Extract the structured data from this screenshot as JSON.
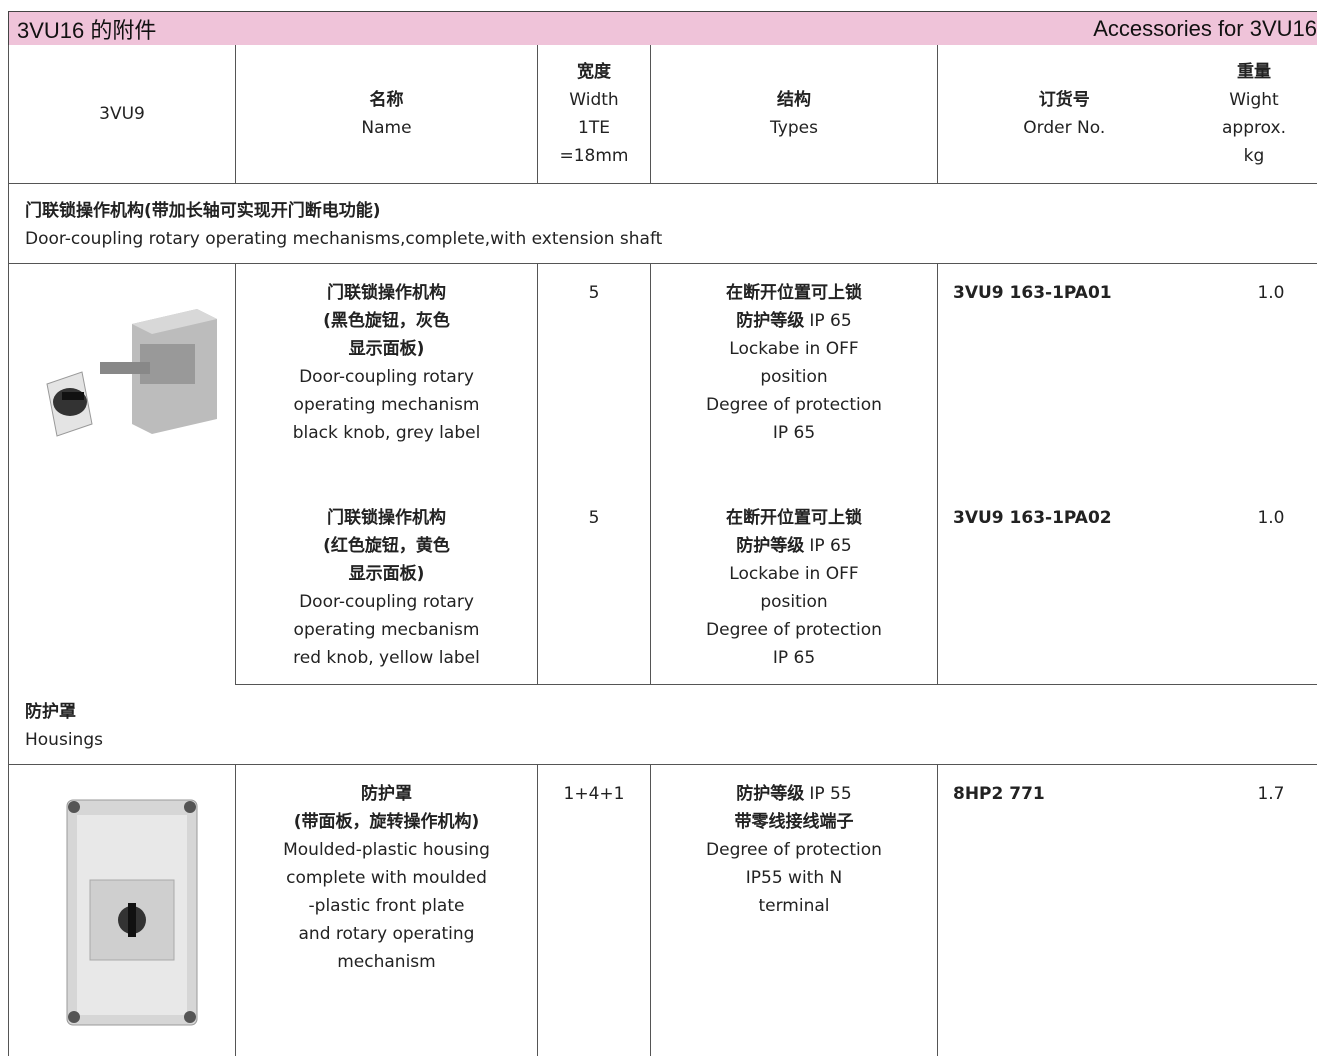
{
  "header": {
    "title_cn": "3VU16 的附件",
    "title_en": "Accessories for 3VU16"
  },
  "columns": [
    {
      "lines": [
        {
          "regular": "3VU9"
        }
      ]
    },
    {
      "lines": [
        {
          "bold": "名称"
        },
        {
          "regular": "Name"
        }
      ]
    },
    {
      "lines": [
        {
          "bold": "宽度"
        },
        {
          "regular": "Width"
        },
        {
          "regular": "1TE"
        },
        {
          "regular": "=18mm"
        }
      ]
    },
    {
      "lines": [
        {
          "bold": "结构"
        },
        {
          "regular": "Types"
        }
      ]
    },
    {
      "lines": [
        {
          "bold": "订货号"
        },
        {
          "regular": "Order No."
        }
      ]
    },
    {
      "lines": [
        {
          "bold": "重量"
        },
        {
          "regular": "Wight"
        },
        {
          "regular": "approx."
        },
        {
          "regular": "kg"
        }
      ]
    }
  ],
  "sections": [
    {
      "title_cn": "门联锁操作机构(带加长轴可实现开门断电功能)",
      "title_en": "Door-coupling rotary operating mechanisms,complete,with extension shaft",
      "items": [
        {
          "name": [
            {
              "bold": "门联锁操作机构"
            },
            {
              "bold": "(黑色旋钮，灰色"
            },
            {
              "bold": "显示面板)"
            },
            {
              "regular": "Door-coupling rotary"
            },
            {
              "regular": "operating mechanism"
            },
            {
              "regular": "black knob, grey label"
            }
          ],
          "width": "5",
          "types": [
            {
              "bold": "在断开位置可上锁"
            },
            {
              "bold": "防护等级",
              "regular": "IP 65"
            },
            {
              "regular": "Lockabe in OFF"
            },
            {
              "regular": "position"
            },
            {
              "regular": "Degree of protection"
            },
            {
              "regular": "IP 65"
            }
          ],
          "order_no": "3VU9 163-1PA01",
          "weight": "1.0"
        },
        {
          "name": [
            {
              "bold": "门联锁操作机构"
            },
            {
              "bold": "(红色旋钮，黄色"
            },
            {
              "bold": "显示面板)"
            },
            {
              "regular": "Door-coupling rotary"
            },
            {
              "regular": "operating mecbanism"
            },
            {
              "regular": "red knob, yellow label"
            }
          ],
          "width": "5",
          "types": [
            {
              "bold": "在断开位置可上锁"
            },
            {
              "bold": "防护等级",
              "regular": "IP 65"
            },
            {
              "regular": "Lockabe in OFF"
            },
            {
              "regular": "position"
            },
            {
              "regular": "Degree of protection"
            },
            {
              "regular": "IP 65"
            }
          ],
          "order_no": "3VU9 163-1PA02",
          "weight": "1.0"
        }
      ]
    },
    {
      "title_cn": "防护罩",
      "title_en": "Housings",
      "items": [
        {
          "name": [
            {
              "bold": "防护罩"
            },
            {
              "bold": "(带面板，旋转操作机构)"
            },
            {
              "regular": "Moulded-plastic housing"
            },
            {
              "regular": "complete with moulded"
            },
            {
              "regular": "-plastic front plate"
            },
            {
              "regular": "and rotary operating"
            },
            {
              "regular": "mechanism"
            }
          ],
          "width": "1+4+1",
          "types": [
            {
              "bold": "防护等级",
              "regular": "IP 55"
            },
            {
              "bold": "带零线接线端子"
            },
            {
              "regular": "Degree of protection"
            },
            {
              "regular": "IP55 with N"
            },
            {
              "regular": "terminal"
            }
          ],
          "order_no": "8HP2 771",
          "weight": "1.7"
        }
      ]
    }
  ]
}
